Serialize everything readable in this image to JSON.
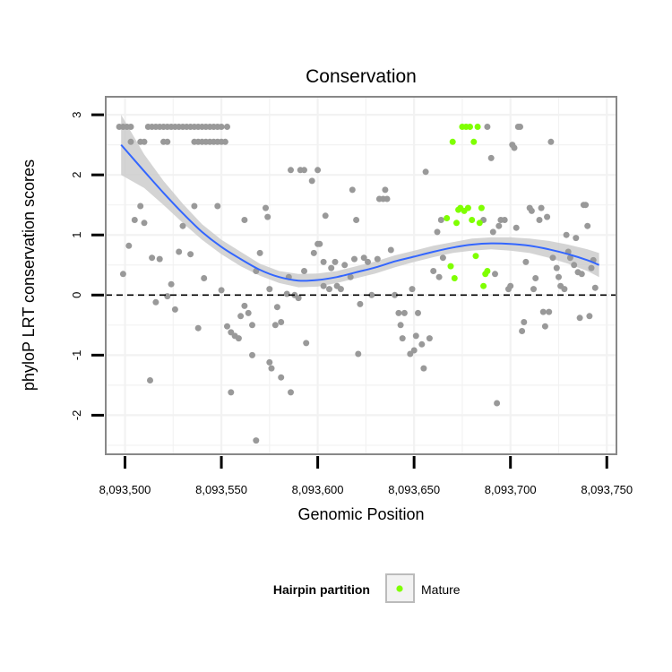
{
  "chart_data": {
    "type": "scatter",
    "title": "Conservation",
    "xlabel": "Genomic Position",
    "ylabel": "phyloP LRT conservation scores",
    "xlim": [
      8093490,
      8093755
    ],
    "ylim": [
      -2.65,
      3.3
    ],
    "x_ticks": [
      8093500,
      8093550,
      8093600,
      8093650,
      8093700,
      8093750
    ],
    "x_tick_labels": [
      "8,093,500",
      "8,093,550",
      "8,093,600",
      "8,093,650",
      "8,093,700",
      "8,093,750"
    ],
    "y_ticks": [
      -2,
      -1,
      0,
      1,
      2,
      3
    ],
    "y_tick_labels": [
      "-2",
      "-1",
      "0",
      "1",
      "2",
      "3"
    ],
    "grid": true,
    "reference_line": {
      "y": 0,
      "style": "dashed"
    },
    "colors": {
      "background_points": "#999999",
      "mature": "#7fff00",
      "smooth": "#3366ff",
      "ribbon": "#cccccc",
      "grid": "#f2f2f2",
      "border": "#888888"
    },
    "legend": {
      "title": "Hairpin partition",
      "placement": "bottom",
      "entries": [
        {
          "label": "Mature",
          "color": "#7fff00"
        }
      ]
    },
    "series": [
      {
        "label_key": "other",
        "color": "#999999",
        "points": [
          [
            8093497,
            2.8
          ],
          [
            8093499,
            2.8
          ],
          [
            8093501,
            2.8
          ],
          [
            8093503,
            2.8
          ],
          [
            8093508,
            2.55
          ],
          [
            8093510,
            2.55
          ],
          [
            8093503,
            2.55
          ],
          [
            8093512,
            2.8
          ],
          [
            8093514,
            2.8
          ],
          [
            8093516,
            2.8
          ],
          [
            8093518,
            2.8
          ],
          [
            8093520,
            2.8
          ],
          [
            8093522,
            2.8
          ],
          [
            8093524,
            2.8
          ],
          [
            8093526,
            2.8
          ],
          [
            8093528,
            2.8
          ],
          [
            8093530,
            2.8
          ],
          [
            8093532,
            2.8
          ],
          [
            8093534,
            2.8
          ],
          [
            8093536,
            2.8
          ],
          [
            8093538,
            2.8
          ],
          [
            8093540,
            2.8
          ],
          [
            8093542,
            2.8
          ],
          [
            8093544,
            2.8
          ],
          [
            8093546,
            2.8
          ],
          [
            8093548,
            2.8
          ],
          [
            8093550,
            2.8
          ],
          [
            8093553,
            2.8
          ],
          [
            8093520,
            2.55
          ],
          [
            8093522,
            2.55
          ],
          [
            8093536,
            2.55
          ],
          [
            8093538,
            2.55
          ],
          [
            8093540,
            2.55
          ],
          [
            8093542,
            2.55
          ],
          [
            8093544,
            2.55
          ],
          [
            8093546,
            2.55
          ],
          [
            8093548,
            2.55
          ],
          [
            8093550,
            2.55
          ],
          [
            8093552,
            2.55
          ],
          [
            8093499,
            0.35
          ],
          [
            8093502,
            0.82
          ],
          [
            8093505,
            1.25
          ],
          [
            8093508,
            1.48
          ],
          [
            8093510,
            1.2
          ],
          [
            8093514,
            0.62
          ],
          [
            8093516,
            -0.12
          ],
          [
            8093518,
            0.6
          ],
          [
            8093513,
            -1.42
          ],
          [
            8093522,
            -0.02
          ],
          [
            8093524,
            0.18
          ],
          [
            8093526,
            -0.24
          ],
          [
            8093528,
            0.72
          ],
          [
            8093530,
            1.15
          ],
          [
            8093534,
            0.68
          ],
          [
            8093536,
            1.48
          ],
          [
            8093538,
            -0.55
          ],
          [
            8093541,
            0.28
          ],
          [
            8093550,
            0.08
          ],
          [
            8093548,
            1.48
          ],
          [
            8093553,
            -0.52
          ],
          [
            8093555,
            -0.62
          ],
          [
            8093557,
            -0.68
          ],
          [
            8093555,
            -1.62
          ],
          [
            8093559,
            -0.72
          ],
          [
            8093560,
            -0.35
          ],
          [
            8093562,
            1.25
          ],
          [
            8093562,
            -0.18
          ],
          [
            8093564,
            -0.3
          ],
          [
            8093566,
            -0.5
          ],
          [
            8093568,
            0.4
          ],
          [
            8093570,
            0.7
          ],
          [
            8093573,
            1.45
          ],
          [
            8093574,
            1.3
          ],
          [
            8093575,
            0.1
          ],
          [
            8093566,
            -1.0
          ],
          [
            8093568,
            -2.42
          ],
          [
            8093575,
            -1.12
          ],
          [
            8093576,
            -1.22
          ],
          [
            8093578,
            -0.5
          ],
          [
            8093579,
            -0.2
          ],
          [
            8093581,
            -0.45
          ],
          [
            8093581,
            -1.37
          ],
          [
            8093584,
            0.02
          ],
          [
            8093585,
            0.3
          ],
          [
            8093586,
            2.08
          ],
          [
            8093586,
            -1.62
          ],
          [
            8093588,
            0.0
          ],
          [
            8093590,
            -0.05
          ],
          [
            8093591,
            2.08
          ],
          [
            8093593,
            2.08
          ],
          [
            8093593,
            0.4
          ],
          [
            8093594,
            -0.8
          ],
          [
            8093597,
            1.9
          ],
          [
            8093598,
            0.7
          ],
          [
            8093600,
            2.08
          ],
          [
            8093600,
            0.85
          ],
          [
            8093601,
            0.85
          ],
          [
            8093603,
            0.15
          ],
          [
            8093603,
            0.55
          ],
          [
            8093604,
            1.32
          ],
          [
            8093606,
            0.1
          ],
          [
            8093607,
            0.45
          ],
          [
            8093609,
            0.55
          ],
          [
            8093610,
            0.15
          ],
          [
            8093612,
            0.1
          ],
          [
            8093614,
            0.5
          ],
          [
            8093617,
            0.3
          ],
          [
            8093618,
            1.75
          ],
          [
            8093619,
            0.6
          ],
          [
            8093620,
            1.25
          ],
          [
            8093621,
            -0.98
          ],
          [
            8093622,
            -0.15
          ],
          [
            8093624,
            0.62
          ],
          [
            8093626,
            0.55
          ],
          [
            8093628,
            0.0
          ],
          [
            8093631,
            0.6
          ],
          [
            8093632,
            1.6
          ],
          [
            8093634,
            1.6
          ],
          [
            8093635,
            1.75
          ],
          [
            8093636,
            1.6
          ],
          [
            8093638,
            0.75
          ],
          [
            8093640,
            0.0
          ],
          [
            8093642,
            -0.3
          ],
          [
            8093643,
            -0.5
          ],
          [
            8093644,
            -0.72
          ],
          [
            8093645,
            -0.3
          ],
          [
            8093648,
            -0.98
          ],
          [
            8093649,
            0.1
          ],
          [
            8093650,
            -0.92
          ],
          [
            8093651,
            -0.68
          ],
          [
            8093652,
            -0.3
          ],
          [
            8093654,
            -0.82
          ],
          [
            8093655,
            -1.22
          ],
          [
            8093656,
            2.05
          ],
          [
            8093658,
            -0.72
          ],
          [
            8093660,
            0.4
          ],
          [
            8093662,
            1.05
          ],
          [
            8093663,
            0.3
          ],
          [
            8093664,
            1.25
          ],
          [
            8093665,
            0.62
          ],
          [
            8093686,
            1.25
          ],
          [
            8093688,
            2.8
          ],
          [
            8093690,
            2.28
          ],
          [
            8093691,
            1.05
          ],
          [
            8093692,
            0.35
          ],
          [
            8093693,
            -1.8
          ],
          [
            8093694,
            1.15
          ],
          [
            8093695,
            1.25
          ],
          [
            8093697,
            1.25
          ],
          [
            8093699,
            0.1
          ],
          [
            8093700,
            0.15
          ],
          [
            8093701,
            2.5
          ],
          [
            8093702,
            2.45
          ],
          [
            8093703,
            1.12
          ],
          [
            8093704,
            2.8
          ],
          [
            8093705,
            2.8
          ],
          [
            8093706,
            -0.6
          ],
          [
            8093707,
            -0.45
          ],
          [
            8093708,
            0.55
          ],
          [
            8093710,
            1.45
          ],
          [
            8093711,
            1.4
          ],
          [
            8093712,
            0.1
          ],
          [
            8093713,
            0.28
          ],
          [
            8093715,
            1.25
          ],
          [
            8093716,
            1.45
          ],
          [
            8093717,
            -0.28
          ],
          [
            8093718,
            -0.52
          ],
          [
            8093719,
            1.3
          ],
          [
            8093720,
            -0.28
          ],
          [
            8093721,
            2.55
          ],
          [
            8093722,
            0.62
          ],
          [
            8093724,
            0.45
          ],
          [
            8093725,
            0.3
          ],
          [
            8093726,
            0.15
          ],
          [
            8093728,
            0.1
          ],
          [
            8093729,
            1.0
          ],
          [
            8093730,
            0.72
          ],
          [
            8093731,
            0.62
          ],
          [
            8093733,
            0.5
          ],
          [
            8093734,
            0.95
          ],
          [
            8093735,
            0.38
          ],
          [
            8093736,
            -0.38
          ],
          [
            8093737,
            0.35
          ],
          [
            8093738,
            1.5
          ],
          [
            8093739,
            1.5
          ],
          [
            8093740,
            1.15
          ],
          [
            8093741,
            -0.35
          ],
          [
            8093742,
            0.45
          ],
          [
            8093743,
            0.58
          ],
          [
            8093744,
            0.12
          ]
        ]
      },
      {
        "label_key": "mature",
        "color": "#7fff00",
        "points": [
          [
            8093667,
            1.28
          ],
          [
            8093669,
            0.48
          ],
          [
            8093670,
            2.55
          ],
          [
            8093671,
            0.28
          ],
          [
            8093672,
            1.2
          ],
          [
            8093673,
            1.42
          ],
          [
            8093674,
            1.45
          ],
          [
            8093675,
            2.8
          ],
          [
            8093676,
            1.4
          ],
          [
            8093677,
            2.8
          ],
          [
            8093678,
            1.45
          ],
          [
            8093679,
            2.8
          ],
          [
            8093680,
            1.25
          ],
          [
            8093681,
            2.55
          ],
          [
            8093682,
            0.65
          ],
          [
            8093683,
            2.8
          ],
          [
            8093684,
            1.2
          ],
          [
            8093685,
            1.45
          ],
          [
            8093686,
            0.15
          ],
          [
            8093687,
            0.35
          ],
          [
            8093688,
            0.4
          ]
        ]
      }
    ],
    "smooth_fit": {
      "x": [
        8093498,
        8093510,
        8093520,
        8093530,
        8093540,
        8093550,
        8093560,
        8093570,
        8093580,
        8093590,
        8093600,
        8093610,
        8093620,
        8093630,
        8093640,
        8093650,
        8093660,
        8093670,
        8093680,
        8093690,
        8093700,
        8093710,
        8093720,
        8093730,
        8093740,
        8093746
      ],
      "y": [
        2.5,
        2.06,
        1.7,
        1.36,
        1.05,
        0.8,
        0.6,
        0.42,
        0.3,
        0.24,
        0.25,
        0.3,
        0.38,
        0.46,
        0.56,
        0.64,
        0.72,
        0.79,
        0.84,
        0.86,
        0.85,
        0.82,
        0.76,
        0.68,
        0.58,
        0.5
      ],
      "lower": [
        2.0,
        1.78,
        1.5,
        1.2,
        0.92,
        0.68,
        0.48,
        0.32,
        0.2,
        0.13,
        0.14,
        0.2,
        0.28,
        0.36,
        0.46,
        0.55,
        0.63,
        0.7,
        0.74,
        0.76,
        0.74,
        0.7,
        0.62,
        0.52,
        0.4,
        0.3
      ],
      "upper": [
        3.0,
        2.34,
        1.9,
        1.52,
        1.18,
        0.92,
        0.72,
        0.52,
        0.4,
        0.35,
        0.36,
        0.4,
        0.48,
        0.56,
        0.66,
        0.74,
        0.82,
        0.88,
        0.94,
        0.96,
        0.96,
        0.94,
        0.9,
        0.84,
        0.76,
        0.7
      ]
    }
  }
}
